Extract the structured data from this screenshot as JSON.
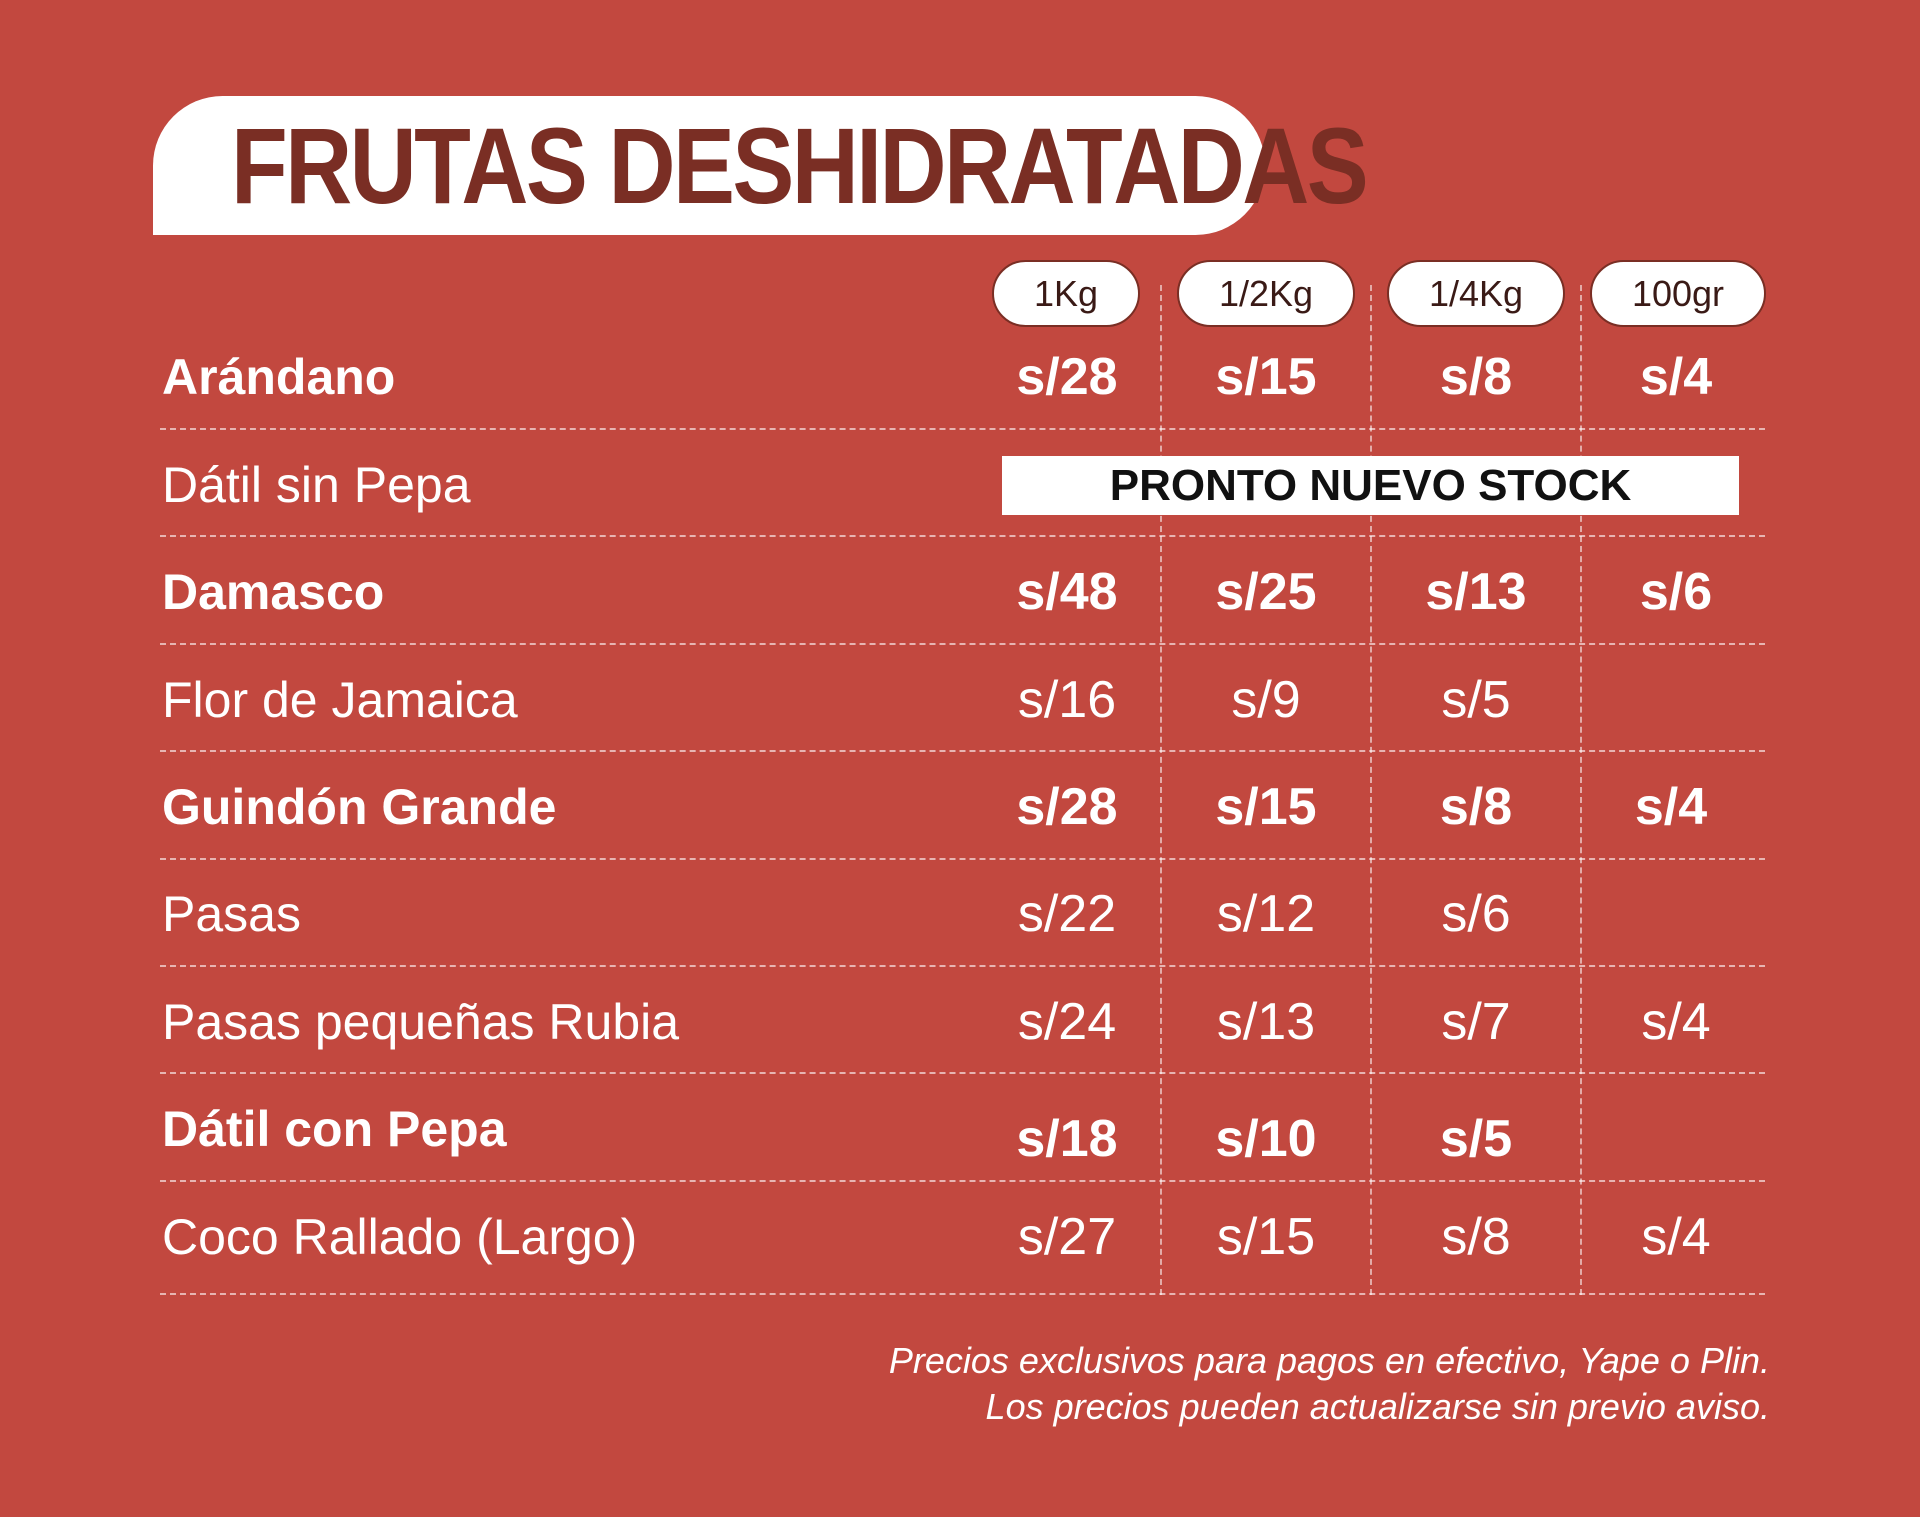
{
  "title": "FRUTAS DESHIDRATADAS",
  "sizes": [
    "1Kg",
    "1/2Kg",
    "1/4Kg",
    "100gr"
  ],
  "rows": [
    {
      "name": "Arándano",
      "prices": [
        "s/28",
        "s/15",
        "s/8",
        "s/4"
      ]
    },
    {
      "name": "Dátil sin Pepa",
      "status": "PRONTO NUEVO STOCK"
    },
    {
      "name": "Damasco",
      "prices": [
        "s/48",
        "s/25",
        "s/13",
        "s/6"
      ]
    },
    {
      "name": "Flor de Jamaica",
      "prices": [
        "s/16",
        "s/9",
        "s/5",
        ""
      ]
    },
    {
      "name": "Guindón Grande",
      "prices": [
        "s/28",
        "s/15",
        "s/8",
        "s/4"
      ]
    },
    {
      "name": "Pasas",
      "prices": [
        "s/22",
        "s/12",
        "s/6",
        ""
      ]
    },
    {
      "name": "Pasas pequeñas Rubia",
      "prices": [
        "s/24",
        "s/13",
        "s/7",
        "s/4"
      ]
    },
    {
      "name": "Dátil con Pepa",
      "prices": [
        "s/18",
        "s/10",
        "s/5",
        ""
      ]
    },
    {
      "name": "Coco Rallado (Largo)",
      "prices": [
        "s/27",
        "s/15",
        "s/8",
        "s/4"
      ]
    }
  ],
  "footnote": {
    "line1": "Precios exclusivos para pagos en efectivo, Yape o Plin.",
    "line2": "Los precios pueden actualizarse sin previo aviso."
  }
}
